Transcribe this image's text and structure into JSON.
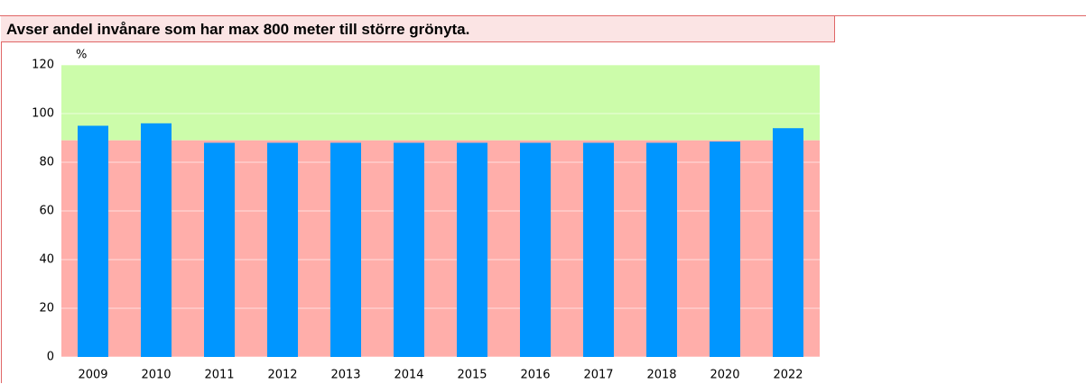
{
  "header": {
    "title": "Avser andel invånare som har max 800 meter till större grönyta."
  },
  "chart_data": {
    "type": "bar",
    "unit": "%",
    "categories": [
      "2009",
      "2010",
      "2011",
      "2012",
      "2013",
      "2014",
      "2015",
      "2016",
      "2017",
      "2018",
      "2020",
      "2022"
    ],
    "values": [
      95,
      96,
      88,
      88,
      88,
      88,
      88,
      88,
      88,
      88,
      88.5,
      94
    ],
    "color": "#0096ff",
    "ylim": [
      0,
      120
    ],
    "yticks": [
      0,
      20,
      40,
      60,
      80,
      100,
      120
    ],
    "target": 89,
    "above_color": "#ccfcaa",
    "below_color": "#ffaeaa",
    "grid": true
  }
}
